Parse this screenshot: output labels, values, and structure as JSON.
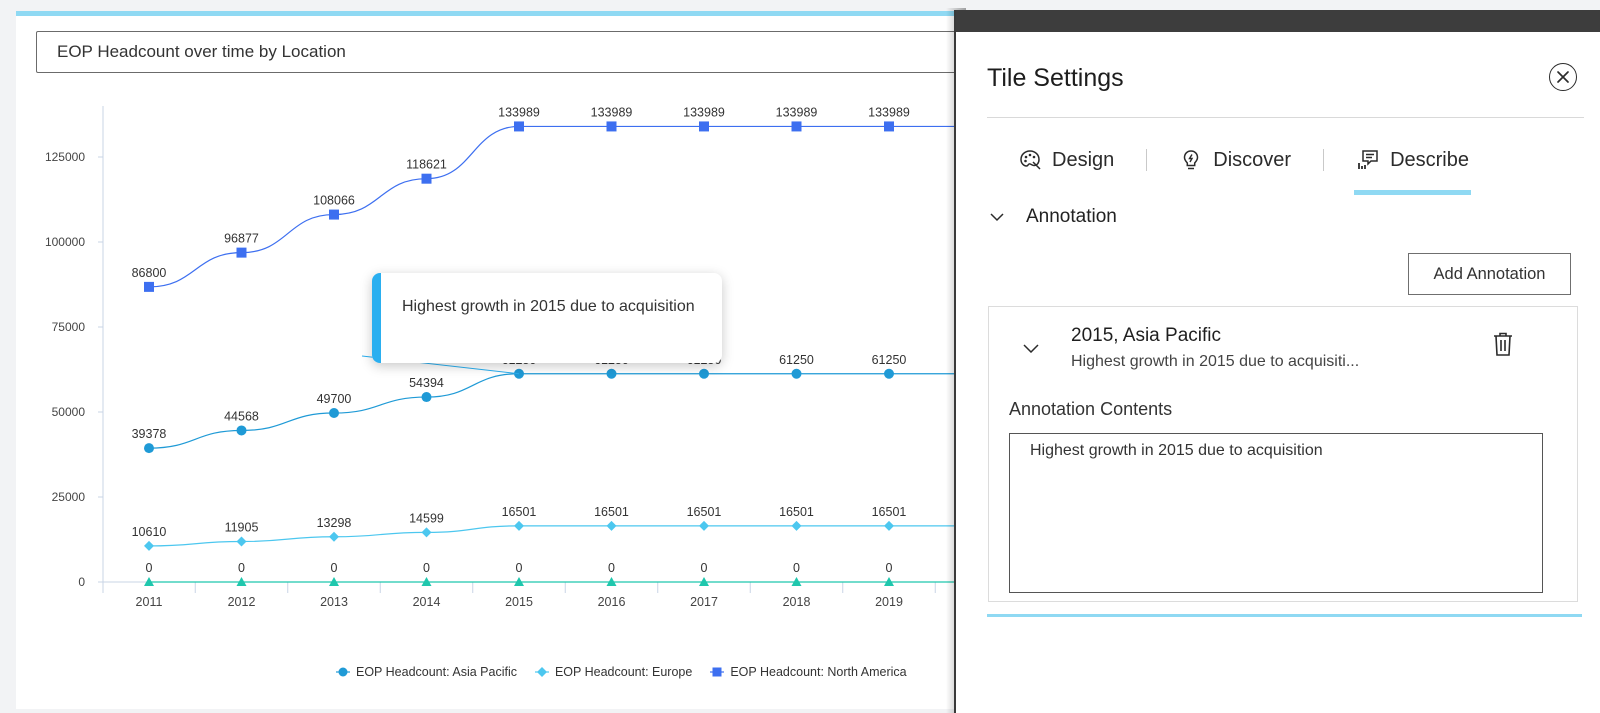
{
  "tile": {
    "title_value": "EOP Headcount over time by Location",
    "annotation_note": "Highest growth in 2015 due to acquisition"
  },
  "chart_data": {
    "type": "line",
    "title": "EOP Headcount over time by Location",
    "categories": [
      "2011",
      "2012",
      "2013",
      "2014",
      "2015",
      "2016",
      "2017",
      "2018",
      "2019"
    ],
    "y_ticks": [
      "0",
      "25000",
      "50000",
      "75000",
      "100000",
      "125000"
    ],
    "ylim": [
      0,
      140000
    ],
    "grid": false,
    "legend_position": "bottom",
    "series": [
      {
        "name": "EOP Headcount: North America",
        "marker": "square",
        "color": "#3d6ff0",
        "values": [
          86800,
          96877,
          108066,
          118621,
          133989,
          133989,
          133989,
          133989,
          133989
        ]
      },
      {
        "name": "EOP Headcount: Asia Pacific",
        "marker": "circle",
        "color": "#1f9ad6",
        "values": [
          39378,
          44568,
          49700,
          54394,
          61250,
          61250,
          61250,
          61250,
          61250
        ]
      },
      {
        "name": "EOP Headcount: Europe",
        "marker": "diamond",
        "color": "#4cc7ef",
        "values": [
          10610,
          11905,
          13298,
          14599,
          16501,
          16501,
          16501,
          16501,
          16501
        ]
      },
      {
        "marker": "triangle",
        "color": "#1fc7ad",
        "values": [
          0,
          0,
          0,
          0,
          0,
          0,
          0,
          0,
          0
        ]
      }
    ],
    "annotation": {
      "category": "2015",
      "series": "EOP Headcount: Asia Pacific",
      "text": "Highest growth in 2015 due to acquisition"
    }
  },
  "legend": [
    {
      "label": "EOP Headcount: Asia Pacific",
      "marker": "circle",
      "color": "#1f9ad6"
    },
    {
      "label": "EOP Headcount: Europe",
      "marker": "diamond",
      "color": "#4cc7ef"
    },
    {
      "label": "EOP Headcount: North America",
      "marker": "square",
      "color": "#3d6ff0"
    }
  ],
  "panel": {
    "title": "Tile Settings",
    "close_icon": "close-circle-icon",
    "tabs": [
      {
        "label": "Design",
        "icon": "palette-icon",
        "active": false
      },
      {
        "label": "Discover",
        "icon": "lightbulb-icon",
        "active": false
      },
      {
        "label": "Describe",
        "icon": "comment-chart-icon",
        "active": true
      }
    ],
    "section_label": "Annotation",
    "add_button": "Add Annotation",
    "annotation": {
      "name": "2015, Asia Pacific",
      "summary": "Highest growth in 2015 due to acquisiti...",
      "contents_label": "Annotation Contents",
      "contents_value": "Highest growth in 2015 due to acquisition"
    }
  },
  "colors": {
    "accent": "#8fd9f3",
    "annotation_bar": "#2aaff0",
    "panel_header": "#3d3d3d"
  }
}
